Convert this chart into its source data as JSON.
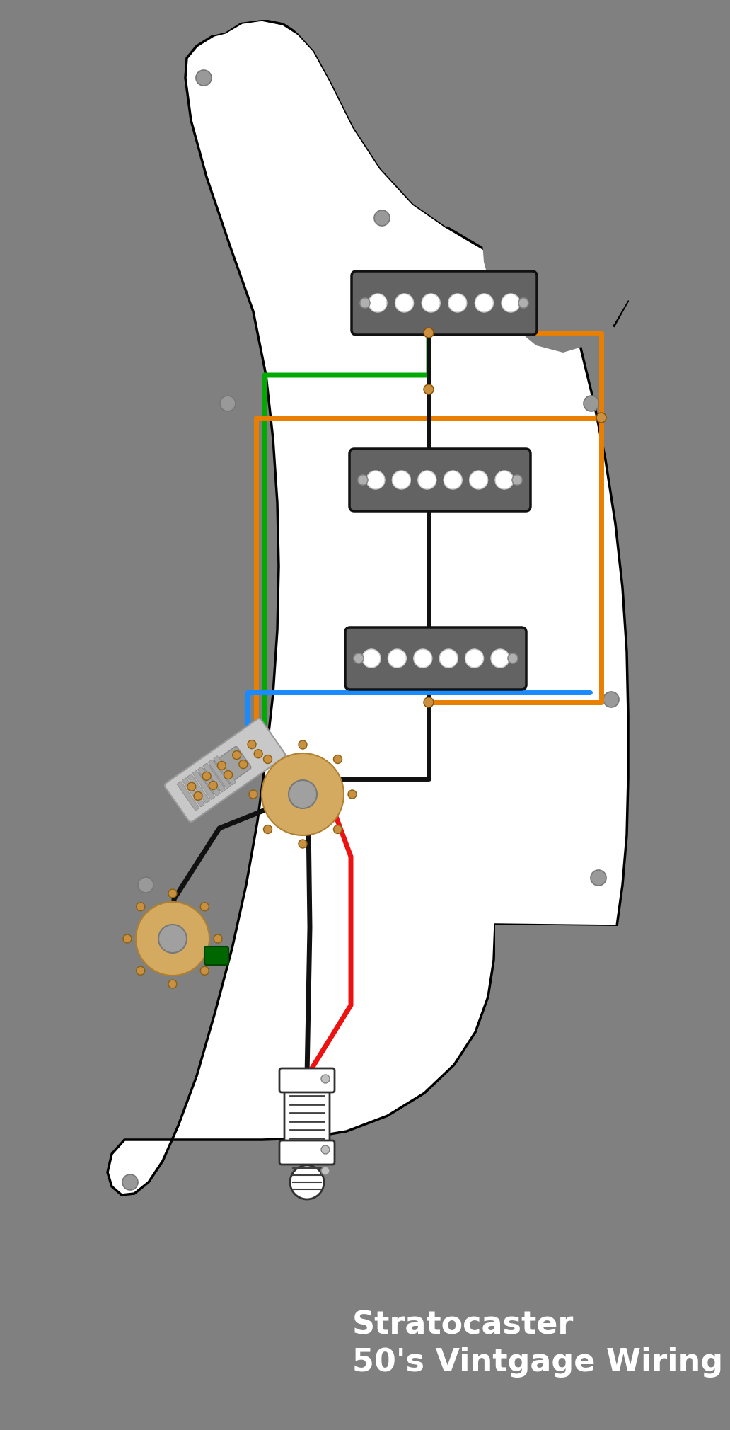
{
  "bg_color": "#808080",
  "pickguard_color": "#ffffff",
  "wire_green": "#00aa00",
  "wire_orange": "#e87f00",
  "wire_black": "#111111",
  "wire_blue": "#1a8aff",
  "wire_red": "#ee1111",
  "pickup_color": "#636363",
  "pot_color": "#d4aa60",
  "pot_lug_color": "#c89040",
  "pot_center_color": "#a0a0a0",
  "switch_color": "#c8c8c8",
  "screw_color": "#999999",
  "title_text": "Stratocaster\n50's Vintgage Wiring",
  "title_color": "#ffffff",
  "title_fontsize": 32
}
